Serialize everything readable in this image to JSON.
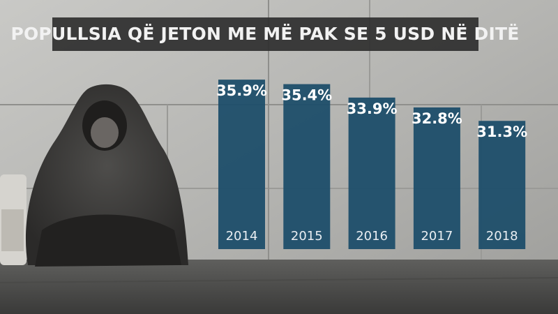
{
  "chart_data": {
    "type": "bar",
    "title": "POPULLSIA QË JETON ME MË PAK SE 5 USD NË DITË",
    "categories": [
      "2014",
      "2015",
      "2016",
      "2017",
      "2018"
    ],
    "values": [
      35.9,
      35.4,
      33.9,
      32.8,
      31.3
    ],
    "value_labels": [
      "35.9%",
      "35.4%",
      "33.9%",
      "32.8%",
      "31.3%"
    ],
    "color": "#1d4e6a",
    "ylim": [
      17,
      37
    ]
  }
}
